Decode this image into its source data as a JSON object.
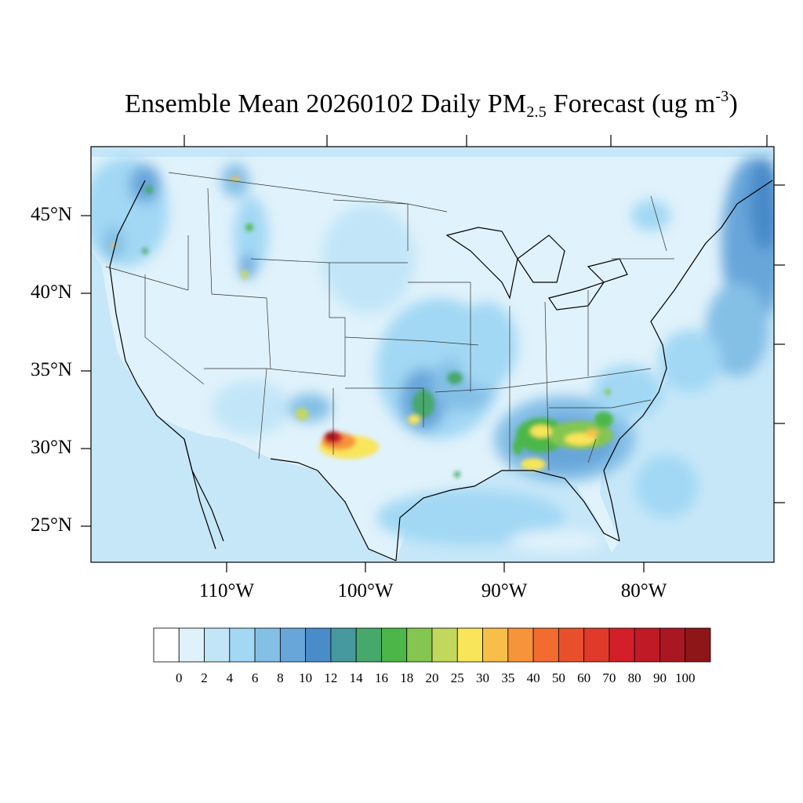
{
  "title": {
    "prefix": "Ensemble Mean 20260102 Daily PM",
    "subscript": "2.5",
    "middle": " Forecast (ug m",
    "superscript": "-3",
    "suffix": ")"
  },
  "lat_labels": [
    "45°N",
    "40°N",
    "35°N",
    "30°N",
    "25°N"
  ],
  "lon_labels": [
    "110°W",
    "100°W",
    "90°W",
    "80°W"
  ],
  "colorbar": {
    "levels": [
      "0",
      "2",
      "4",
      "6",
      "8",
      "10",
      "12",
      "14",
      "16",
      "18",
      "20",
      "25",
      "30",
      "35",
      "40",
      "50",
      "60",
      "70",
      "80",
      "90",
      "100"
    ],
    "colors": [
      "#ffffff",
      "#dff1fb",
      "#c2e6f8",
      "#a2d8f4",
      "#84bfe6",
      "#68a6da",
      "#4a8bc9",
      "#45999f",
      "#47a86c",
      "#4cb748",
      "#84c651",
      "#c2d85c",
      "#f8e55a",
      "#f8be4a",
      "#f5943b",
      "#f26b2f",
      "#e8502c",
      "#e03a2a",
      "#d21f29",
      "#bf1a25",
      "#a91822",
      "#8e1518"
    ]
  },
  "legend_placement": "bottom",
  "units": "ug m-3"
}
